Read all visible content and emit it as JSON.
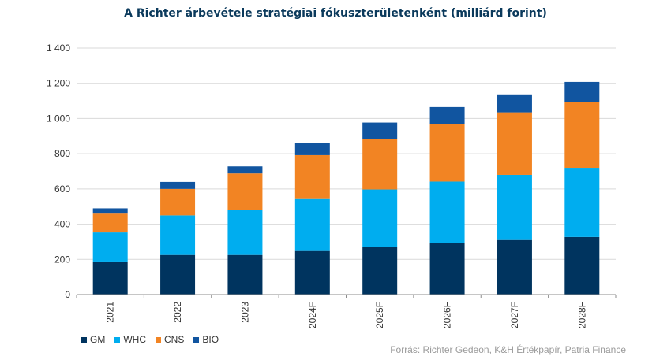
{
  "chart_data": {
    "type": "bar",
    "stacked": true,
    "title": "A Richter árbevétele  stratégiai fókuszterületenként  (milliárd forint)",
    "xlabel": "",
    "ylabel": "",
    "categories": [
      "2021",
      "2022",
      "2023",
      "2024F",
      "2025F",
      "2026F",
      "2027F",
      "2028F"
    ],
    "series": [
      {
        "name": "GM",
        "color": "#00345f",
        "values": [
          188,
          225,
          225,
          252,
          272,
          292,
          310,
          327
        ]
      },
      {
        "name": "WHC",
        "color": "#00adef",
        "values": [
          165,
          225,
          258,
          295,
          325,
          350,
          370,
          393
        ]
      },
      {
        "name": "CNS",
        "color": "#f28423",
        "values": [
          107,
          150,
          205,
          245,
          288,
          328,
          355,
          375
        ]
      },
      {
        "name": "BIO",
        "color": "#1155a0",
        "values": [
          30,
          40,
          40,
          70,
          92,
          95,
          102,
          113
        ]
      }
    ],
    "ylim": [
      0,
      1400
    ],
    "yticks": [
      0,
      200,
      400,
      600,
      800,
      1000,
      1200,
      1400
    ],
    "ytick_labels": [
      "0",
      "200",
      "400",
      "600",
      "800",
      "1 000",
      "1 200",
      "1 400"
    ],
    "grid": true,
    "legend_position": "bottom-left"
  },
  "source_note": "Forrás: Richter Gedeon, K&H Értékpapír,  Patria Finance"
}
